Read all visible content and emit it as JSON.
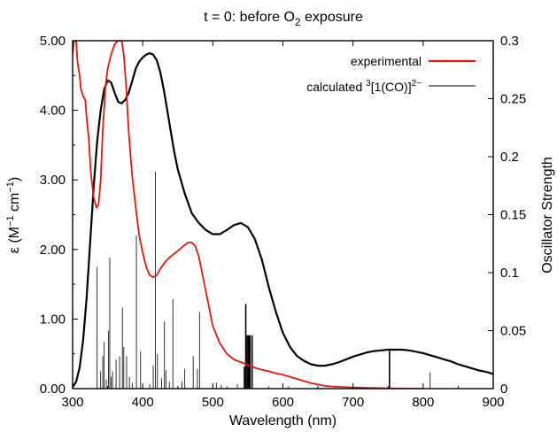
{
  "chart_data": {
    "type": "line",
    "title": "t = 0: before O",
    "title_subscript": "2",
    "title_suffix": " exposure",
    "xlabel": "Wavelength (nm)",
    "ylabel_left": {
      "prefix": "ε (M",
      "sup1": "−1",
      "mid": " cm",
      "sup2": "−1",
      "suffix": ")"
    },
    "ylabel_right": "Oscillator Strength",
    "xlim": [
      300,
      900
    ],
    "ylim_left": [
      0,
      5
    ],
    "ylim_right": [
      0,
      0.3
    ],
    "x_ticks": [
      {
        "value": 300,
        "label": "300"
      },
      {
        "value": 400,
        "label": "400"
      },
      {
        "value": 500,
        "label": "500"
      },
      {
        "value": 600,
        "label": "600"
      },
      {
        "value": 700,
        "label": "700"
      },
      {
        "value": 800,
        "label": "800"
      },
      {
        "value": 900,
        "label": "900"
      }
    ],
    "y_left_ticks": [
      {
        "value": 0,
        "label": "0.00"
      },
      {
        "value": 1,
        "label": "1.00"
      },
      {
        "value": 2,
        "label": "2.00"
      },
      {
        "value": 3,
        "label": "3.00"
      },
      {
        "value": 4,
        "label": "4.00"
      },
      {
        "value": 5,
        "label": "5.00"
      }
    ],
    "y_right_ticks": [
      {
        "value": 0,
        "label": "0"
      },
      {
        "value": 0.05,
        "label": "0.05"
      },
      {
        "value": 0.1,
        "label": "0.1"
      },
      {
        "value": 0.15,
        "label": "0.15"
      },
      {
        "value": 0.2,
        "label": "0.2"
      },
      {
        "value": 0.25,
        "label": "0.25"
      },
      {
        "value": 0.3,
        "label": "0.3"
      }
    ],
    "grid": false,
    "legend_position": "top-right",
    "series": [
      {
        "name": "experimental",
        "color": "#e3170d",
        "axis": "left",
        "points": [
          [
            300,
            4.8
          ],
          [
            302,
            5.0
          ],
          [
            305,
            5.0
          ],
          [
            307,
            4.7
          ],
          [
            310,
            4.5
          ],
          [
            312,
            4.3
          ],
          [
            315,
            4.2
          ],
          [
            318,
            4.15
          ],
          [
            320,
            3.9
          ],
          [
            323,
            3.6
          ],
          [
            326,
            3.1
          ],
          [
            330,
            2.75
          ],
          [
            334,
            2.6
          ],
          [
            337,
            2.65
          ],
          [
            340,
            3.0
          ],
          [
            343,
            3.7
          ],
          [
            347,
            4.35
          ],
          [
            350,
            4.6
          ],
          [
            355,
            4.8
          ],
          [
            360,
            4.95
          ],
          [
            365,
            5.0
          ],
          [
            370,
            5.0
          ],
          [
            373,
            4.8
          ],
          [
            376,
            4.4
          ],
          [
            380,
            3.7
          ],
          [
            385,
            3.05
          ],
          [
            390,
            2.6
          ],
          [
            395,
            2.2
          ],
          [
            400,
            1.95
          ],
          [
            405,
            1.75
          ],
          [
            410,
            1.63
          ],
          [
            415,
            1.6
          ],
          [
            420,
            1.63
          ],
          [
            425,
            1.72
          ],
          [
            432,
            1.82
          ],
          [
            440,
            1.9
          ],
          [
            450,
            1.98
          ],
          [
            458,
            2.05
          ],
          [
            465,
            2.1
          ],
          [
            470,
            2.1
          ],
          [
            475,
            2.05
          ],
          [
            480,
            1.9
          ],
          [
            485,
            1.65
          ],
          [
            490,
            1.4
          ],
          [
            495,
            1.15
          ],
          [
            500,
            0.9
          ],
          [
            510,
            0.65
          ],
          [
            520,
            0.5
          ],
          [
            530,
            0.42
          ],
          [
            540,
            0.38
          ],
          [
            550,
            0.34
          ],
          [
            560,
            0.3
          ],
          [
            570,
            0.27
          ],
          [
            580,
            0.25
          ],
          [
            590,
            0.22
          ],
          [
            600,
            0.2
          ],
          [
            610,
            0.17
          ],
          [
            620,
            0.14
          ],
          [
            630,
            0.11
          ],
          [
            640,
            0.08
          ],
          [
            650,
            0.06
          ],
          [
            660,
            0.04
          ],
          [
            670,
            0.03
          ],
          [
            690,
            0.02
          ],
          [
            720,
            0.01
          ],
          [
            750,
            0.005
          ],
          [
            780,
            0.0
          ],
          [
            800,
            0.0
          ]
        ]
      },
      {
        "name_prefix": "calculated ",
        "name_sup": "3",
        "name_mid": "[1(CO)]",
        "name_sup2": "2−",
        "color": "#000000",
        "axis": "left",
        "points": [
          [
            300,
            0.02
          ],
          [
            305,
            0.1
          ],
          [
            310,
            0.3
          ],
          [
            315,
            0.7
          ],
          [
            320,
            1.3
          ],
          [
            325,
            2.1
          ],
          [
            330,
            2.9
          ],
          [
            335,
            3.55
          ],
          [
            340,
            4.0
          ],
          [
            345,
            4.3
          ],
          [
            350,
            4.43
          ],
          [
            355,
            4.4
          ],
          [
            360,
            4.25
          ],
          [
            365,
            4.12
          ],
          [
            370,
            4.1
          ],
          [
            375,
            4.15
          ],
          [
            380,
            4.25
          ],
          [
            385,
            4.42
          ],
          [
            390,
            4.6
          ],
          [
            395,
            4.7
          ],
          [
            400,
            4.76
          ],
          [
            405,
            4.8
          ],
          [
            410,
            4.82
          ],
          [
            415,
            4.8
          ],
          [
            420,
            4.72
          ],
          [
            425,
            4.55
          ],
          [
            430,
            4.3
          ],
          [
            435,
            4.0
          ],
          [
            440,
            3.7
          ],
          [
            445,
            3.4
          ],
          [
            450,
            3.15
          ],
          [
            460,
            2.8
          ],
          [
            470,
            2.52
          ],
          [
            480,
            2.38
          ],
          [
            490,
            2.28
          ],
          [
            500,
            2.22
          ],
          [
            510,
            2.22
          ],
          [
            520,
            2.28
          ],
          [
            530,
            2.35
          ],
          [
            540,
            2.38
          ],
          [
            550,
            2.32
          ],
          [
            560,
            2.15
          ],
          [
            570,
            1.85
          ],
          [
            580,
            1.45
          ],
          [
            590,
            1.1
          ],
          [
            600,
            0.8
          ],
          [
            610,
            0.6
          ],
          [
            620,
            0.47
          ],
          [
            630,
            0.4
          ],
          [
            640,
            0.35
          ],
          [
            650,
            0.33
          ],
          [
            660,
            0.33
          ],
          [
            670,
            0.35
          ],
          [
            680,
            0.38
          ],
          [
            690,
            0.42
          ],
          [
            700,
            0.46
          ],
          [
            710,
            0.49
          ],
          [
            720,
            0.52
          ],
          [
            730,
            0.54
          ],
          [
            740,
            0.55
          ],
          [
            750,
            0.56
          ],
          [
            760,
            0.56
          ],
          [
            770,
            0.56
          ],
          [
            780,
            0.55
          ],
          [
            790,
            0.53
          ],
          [
            800,
            0.51
          ],
          [
            810,
            0.48
          ],
          [
            820,
            0.45
          ],
          [
            830,
            0.42
          ],
          [
            840,
            0.39
          ],
          [
            850,
            0.35
          ],
          [
            860,
            0.32
          ],
          [
            870,
            0.29
          ],
          [
            880,
            0.26
          ],
          [
            890,
            0.24
          ],
          [
            900,
            0.21
          ]
        ]
      }
    ],
    "oscillator_sticks": [
      {
        "x": 335,
        "f": 0.105
      },
      {
        "x": 340,
        "f": 0.015
      },
      {
        "x": 343,
        "f": 0.028
      },
      {
        "x": 345,
        "f": 0.04
      },
      {
        "x": 348,
        "f": 0.008
      },
      {
        "x": 351,
        "f": 0.05
      },
      {
        "x": 353,
        "f": 0.113
      },
      {
        "x": 355,
        "f": 0.01
      },
      {
        "x": 357,
        "f": 0.015
      },
      {
        "x": 362,
        "f": 0.025
      },
      {
        "x": 367,
        "f": 0.028
      },
      {
        "x": 371,
        "f": 0.07
      },
      {
        "x": 373,
        "f": 0.036
      },
      {
        "x": 377,
        "f": 0.028
      },
      {
        "x": 381,
        "f": 0.01
      },
      {
        "x": 385,
        "f": 0.005
      },
      {
        "x": 391,
        "f": 0.132
      },
      {
        "x": 397,
        "f": 0.032
      },
      {
        "x": 410,
        "f": 0.004
      },
      {
        "x": 415,
        "f": 0.02
      },
      {
        "x": 418,
        "f": 0.187
      },
      {
        "x": 421,
        "f": 0.03
      },
      {
        "x": 427,
        "f": 0.009
      },
      {
        "x": 431,
        "f": 0.058
      },
      {
        "x": 433,
        "f": 0.016
      },
      {
        "x": 438,
        "f": 0.006
      },
      {
        "x": 443,
        "f": 0.077
      },
      {
        "x": 456,
        "f": 0.006
      },
      {
        "x": 460,
        "f": 0.017
      },
      {
        "x": 472,
        "f": 0.028
      },
      {
        "x": 478,
        "f": 0.017
      },
      {
        "x": 481,
        "f": 0.066
      },
      {
        "x": 500,
        "f": 0.003
      },
      {
        "x": 505,
        "f": 0.005
      },
      {
        "x": 512,
        "f": 0.003
      },
      {
        "x": 520,
        "f": 0.002
      },
      {
        "x": 535,
        "f": 0.004
      },
      {
        "x": 545,
        "f": 0.019
      },
      {
        "x": 547,
        "f": 0.073
      },
      {
        "x": 549,
        "f": 0.046
      },
      {
        "x": 551,
        "f": 0.046
      },
      {
        "x": 553,
        "f": 0.046
      },
      {
        "x": 556,
        "f": 0.046
      },
      {
        "x": 580,
        "f": 0.002
      },
      {
        "x": 608,
        "f": 0.002
      },
      {
        "x": 650,
        "f": 0.002
      },
      {
        "x": 752,
        "f": 0.033
      },
      {
        "x": 810,
        "f": 0.014
      }
    ]
  }
}
